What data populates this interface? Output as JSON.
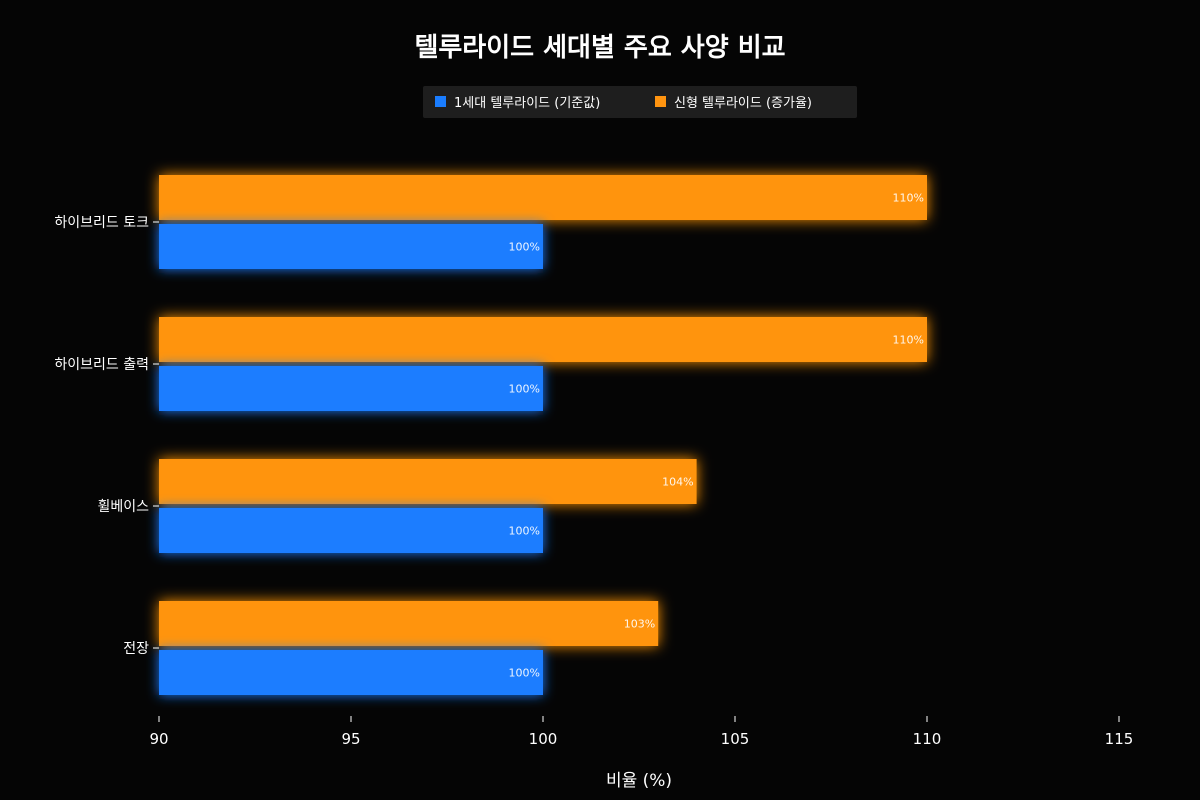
{
  "chart_data": {
    "type": "bar",
    "orientation": "horizontal",
    "title": "텔루라이드 세대별 주요 사양 비교",
    "xlabel": "비율 (%)",
    "ylabel": "",
    "categories": [
      "하이브리드 토크",
      "하이브리드 출력",
      "휠베이스",
      "전장"
    ],
    "series": [
      {
        "name": "1세대 텔루라이드 (기준값)",
        "values": [
          100,
          100,
          100,
          100
        ],
        "color": "#1a7dff"
      },
      {
        "name": "신형 텔루라이드 (증가율)",
        "values": [
          110,
          110,
          104,
          103
        ],
        "color": "#ff9410"
      }
    ],
    "xlim": [
      90,
      115
    ],
    "xticks": [
      90,
      95,
      100,
      105,
      110,
      115
    ],
    "value_label_suffix": "%",
    "legend_position": "top-center",
    "grid": true,
    "grid_color": "#3ee6e6",
    "background": "#050505"
  }
}
